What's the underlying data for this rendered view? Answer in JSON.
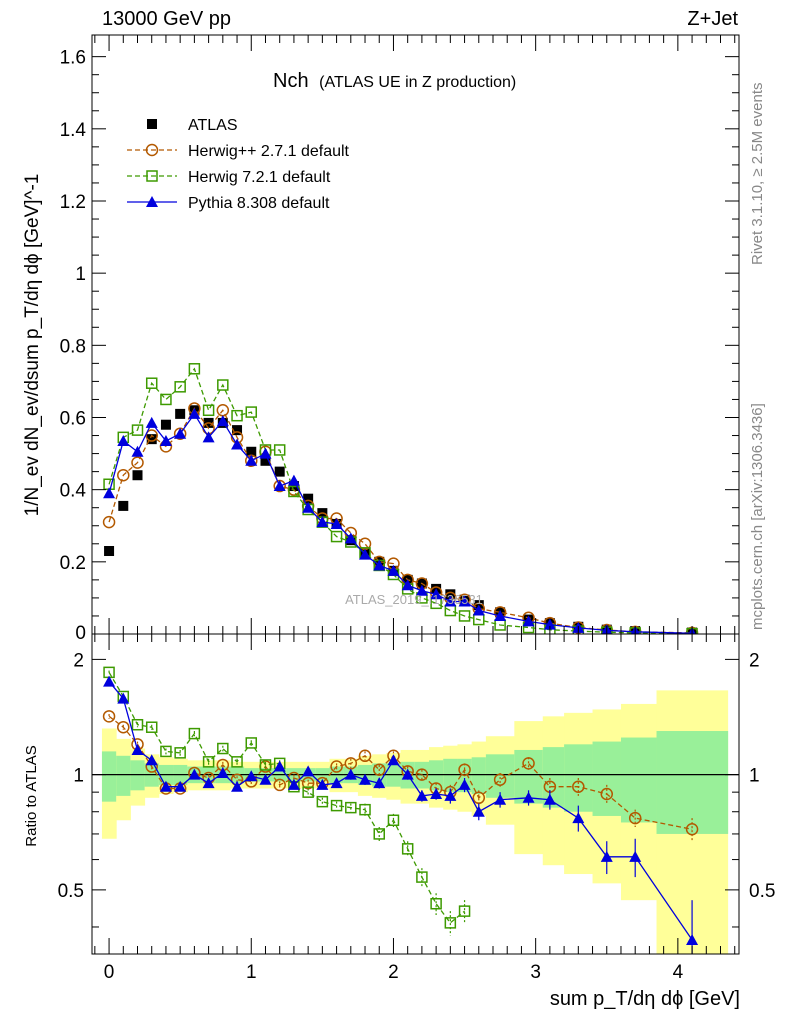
{
  "header": {
    "left": "13000 GeV pp",
    "right": "Z+Jet"
  },
  "title": {
    "main": "Nch",
    "sub": "(ATLAS UE in Z production)"
  },
  "side_labels": {
    "rivet": "Rivet 3.1.10, ≥ 2.5M events",
    "mcplots": "mcplots.cern.ch [arXiv:1306.3436]"
  },
  "watermark": "ATLAS_2019_I1736531",
  "colors": {
    "atlas": "#000000",
    "herwigpp": "#b35900",
    "herwig7": "#3d9a00",
    "pythia": "#0000dd",
    "band_inner": "#99f099",
    "band_outer": "#ffff99"
  },
  "chart_data": [
    {
      "type": "line",
      "panel": "main",
      "ylabel": "1/N_ev dN_ev/dsum p_T/dη dϕ [GeV]^-1",
      "xlim": [
        -0.12,
        4.43
      ],
      "ylim": [
        0,
        1.66
      ],
      "yticks": [
        0.2,
        0.4,
        0.6,
        0.8,
        1,
        1.2,
        1.4,
        1.6
      ],
      "ytick_labels": [
        "0.2",
        "0.4",
        "0.6",
        "0.8",
        "1",
        "1.2",
        "1.4",
        "1.6"
      ],
      "legend_position": "top-left",
      "series": [
        {
          "name": "ATLAS",
          "key": "atlas",
          "x": [
            0,
            0.1,
            0.2,
            0.3,
            0.4,
            0.5,
            0.6,
            0.7,
            0.8,
            0.9,
            1.0,
            1.1,
            1.2,
            1.3,
            1.4,
            1.5,
            1.6,
            1.7,
            1.8,
            1.9,
            2.0,
            2.1,
            2.2,
            2.3,
            2.4,
            2.5,
            2.6,
            2.75,
            2.95,
            3.1,
            3.3,
            3.5,
            3.7,
            4.1
          ],
          "y": [
            0.23,
            0.355,
            0.44,
            0.54,
            0.58,
            0.61,
            0.62,
            0.585,
            0.585,
            0.565,
            0.505,
            0.48,
            0.45,
            0.41,
            0.375,
            0.335,
            0.305,
            0.26,
            0.225,
            0.2,
            0.175,
            0.15,
            0.14,
            0.125,
            0.11,
            0.095,
            0.08,
            0.06,
            0.04,
            0.03,
            0.02,
            0.012,
            0.008,
            0.004
          ]
        },
        {
          "name": "Herwig++ 2.7.1 default",
          "key": "herwigpp",
          "x": [
            0,
            0.1,
            0.2,
            0.3,
            0.4,
            0.5,
            0.6,
            0.7,
            0.8,
            0.9,
            1.0,
            1.1,
            1.2,
            1.3,
            1.4,
            1.5,
            1.6,
            1.7,
            1.8,
            1.9,
            2.0,
            2.1,
            2.2,
            2.3,
            2.4,
            2.5,
            2.6,
            2.75,
            2.95,
            3.1,
            3.3,
            3.5,
            3.7,
            4.1
          ],
          "y": [
            0.31,
            0.44,
            0.475,
            0.55,
            0.52,
            0.555,
            0.625,
            0.57,
            0.62,
            0.545,
            0.48,
            0.505,
            0.41,
            0.4,
            0.355,
            0.32,
            0.32,
            0.28,
            0.25,
            0.2,
            0.195,
            0.15,
            0.14,
            0.115,
            0.1,
            0.095,
            0.07,
            0.06,
            0.045,
            0.03,
            0.018,
            0.011,
            0.006,
            0.003
          ]
        },
        {
          "name": "Herwig 7.2.1 default",
          "key": "herwig7",
          "x": [
            0,
            0.1,
            0.2,
            0.3,
            0.4,
            0.5,
            0.6,
            0.7,
            0.8,
            0.9,
            1.0,
            1.1,
            1.2,
            1.3,
            1.4,
            1.5,
            1.6,
            1.7,
            1.8,
            1.9,
            2.0,
            2.1,
            2.2,
            2.3,
            2.4,
            2.5,
            2.6,
            2.75,
            2.95,
            3.1,
            3.3,
            3.5,
            3.7,
            4.1
          ],
          "y": [
            0.415,
            0.545,
            0.565,
            0.695,
            0.65,
            0.685,
            0.735,
            0.62,
            0.69,
            0.605,
            0.615,
            0.51,
            0.51,
            0.395,
            0.345,
            0.31,
            0.27,
            0.255,
            0.225,
            0.19,
            0.165,
            0.125,
            0.1,
            0.085,
            0.065,
            0.05,
            0.04,
            0.025,
            0.018,
            0.012,
            0.008,
            0.005,
            0.003,
            0.001
          ]
        },
        {
          "name": "Pythia 8.308 default",
          "key": "pythia",
          "x": [
            0,
            0.1,
            0.2,
            0.3,
            0.4,
            0.5,
            0.6,
            0.7,
            0.8,
            0.9,
            1.0,
            1.1,
            1.2,
            1.3,
            1.4,
            1.5,
            1.6,
            1.7,
            1.8,
            1.9,
            2.0,
            2.1,
            2.2,
            2.3,
            2.4,
            2.5,
            2.6,
            2.75,
            2.95,
            3.1,
            3.3,
            3.5,
            3.7,
            4.1
          ],
          "y": [
            0.39,
            0.535,
            0.505,
            0.585,
            0.535,
            0.555,
            0.61,
            0.545,
            0.59,
            0.525,
            0.48,
            0.5,
            0.41,
            0.425,
            0.35,
            0.31,
            0.305,
            0.265,
            0.22,
            0.19,
            0.175,
            0.135,
            0.12,
            0.11,
            0.09,
            0.09,
            0.065,
            0.05,
            0.035,
            0.026,
            0.017,
            0.01,
            0.006,
            0.002
          ]
        }
      ]
    },
    {
      "type": "line",
      "panel": "ratio",
      "ylabel": "Ratio to ATLAS",
      "xlabel": "sum p_T/dη dϕ [GeV]",
      "xlim": [
        -0.12,
        4.43
      ],
      "ylim": [
        0.34,
        2.33
      ],
      "xticks": [
        0,
        1,
        2,
        3,
        4
      ],
      "xtick_labels": [
        "0",
        "1",
        "2",
        "3",
        "4"
      ],
      "yticks": [
        0.5,
        1,
        2
      ],
      "ytick_labels": [
        "0.5",
        "1",
        "2"
      ],
      "bands": {
        "edges": [
          -0.05,
          0.05,
          0.15,
          0.25,
          0.35,
          0.45,
          0.55,
          0.65,
          0.75,
          0.85,
          0.95,
          1.05,
          1.15,
          1.25,
          1.35,
          1.45,
          1.55,
          1.65,
          1.75,
          1.85,
          1.95,
          2.05,
          2.15,
          2.25,
          2.35,
          2.45,
          2.55,
          2.65,
          2.85,
          3.05,
          3.2,
          3.4,
          3.6,
          3.85,
          4.35
        ],
        "inner_lo": [
          0.85,
          0.88,
          0.91,
          0.93,
          0.94,
          0.94,
          0.95,
          0.95,
          0.95,
          0.95,
          0.96,
          0.96,
          0.96,
          0.96,
          0.96,
          0.96,
          0.95,
          0.95,
          0.94,
          0.93,
          0.93,
          0.92,
          0.92,
          0.91,
          0.9,
          0.9,
          0.89,
          0.87,
          0.84,
          0.82,
          0.8,
          0.78,
          0.75,
          0.7,
          0.65
        ],
        "inner_hi": [
          1.15,
          1.12,
          1.09,
          1.07,
          1.06,
          1.06,
          1.05,
          1.05,
          1.05,
          1.05,
          1.04,
          1.04,
          1.04,
          1.04,
          1.04,
          1.04,
          1.05,
          1.05,
          1.06,
          1.07,
          1.07,
          1.08,
          1.08,
          1.09,
          1.1,
          1.1,
          1.11,
          1.13,
          1.16,
          1.18,
          1.2,
          1.22,
          1.25,
          1.3,
          1.35
        ],
        "outer_lo": [
          0.68,
          0.76,
          0.83,
          0.87,
          0.89,
          0.9,
          0.91,
          0.91,
          0.91,
          0.92,
          0.92,
          0.92,
          0.92,
          0.92,
          0.92,
          0.92,
          0.9,
          0.9,
          0.88,
          0.87,
          0.86,
          0.84,
          0.84,
          0.82,
          0.81,
          0.8,
          0.78,
          0.74,
          0.62,
          0.58,
          0.55,
          0.52,
          0.47,
          0.34,
          0.3
        ],
        "outer_hi": [
          1.32,
          1.24,
          1.17,
          1.13,
          1.11,
          1.1,
          1.09,
          1.09,
          1.09,
          1.08,
          1.08,
          1.08,
          1.08,
          1.08,
          1.08,
          1.08,
          1.1,
          1.1,
          1.12,
          1.13,
          1.14,
          1.16,
          1.16,
          1.18,
          1.19,
          1.2,
          1.22,
          1.26,
          1.38,
          1.42,
          1.45,
          1.48,
          1.53,
          1.66,
          1.9
        ]
      },
      "series": [
        {
          "name": "Herwig++ 2.7.1 default",
          "key": "herwigpp",
          "x": [
            0,
            0.1,
            0.2,
            0.3,
            0.4,
            0.5,
            0.6,
            0.7,
            0.8,
            0.9,
            1.0,
            1.1,
            1.2,
            1.3,
            1.4,
            1.5,
            1.6,
            1.7,
            1.8,
            1.9,
            2.0,
            2.1,
            2.2,
            2.3,
            2.4,
            2.5,
            2.6,
            2.75,
            2.95,
            3.1,
            3.3,
            3.5,
            3.7,
            4.1
          ],
          "y": [
            1.42,
            1.33,
            1.2,
            1.05,
            0.92,
            0.92,
            1.01,
            0.98,
            1.06,
            0.97,
            0.96,
            1.05,
            0.94,
            0.98,
            0.95,
            0.95,
            1.05,
            1.07,
            1.12,
            1.03,
            1.12,
            1.02,
            1.0,
            0.92,
            0.9,
            1.03,
            0.87,
            0.97,
            1.07,
            0.93,
            0.93,
            0.89,
            0.77,
            0.72
          ],
          "err": [
            0.02,
            0.02,
            0.02,
            0.02,
            0.02,
            0.02,
            0.02,
            0.02,
            0.02,
            0.02,
            0.02,
            0.02,
            0.02,
            0.02,
            0.02,
            0.02,
            0.02,
            0.03,
            0.03,
            0.03,
            0.03,
            0.03,
            0.03,
            0.03,
            0.04,
            0.04,
            0.04,
            0.04,
            0.04,
            0.05,
            0.05,
            0.05,
            0.04,
            0.05
          ]
        },
        {
          "name": "Herwig 7.2.1 default",
          "key": "herwig7",
          "x": [
            0,
            0.1,
            0.2,
            0.3,
            0.4,
            0.5,
            0.6,
            0.7,
            0.8,
            0.9,
            1.0,
            1.1,
            1.2,
            1.3,
            1.4,
            1.5,
            1.6,
            1.7,
            1.8,
            1.9,
            2.0,
            2.1,
            2.2,
            2.3,
            2.4,
            2.5
          ],
          "y": [
            1.85,
            1.6,
            1.35,
            1.33,
            1.15,
            1.14,
            1.28,
            1.08,
            1.17,
            1.08,
            1.21,
            1.06,
            1.07,
            0.93,
            0.9,
            0.85,
            0.83,
            0.82,
            0.81,
            0.7,
            0.76,
            0.64,
            0.54,
            0.46,
            0.41,
            0.44
          ],
          "err": [
            0.02,
            0.02,
            0.02,
            0.02,
            0.02,
            0.02,
            0.02,
            0.02,
            0.02,
            0.02,
            0.02,
            0.02,
            0.02,
            0.02,
            0.02,
            0.02,
            0.02,
            0.02,
            0.03,
            0.03,
            0.03,
            0.03,
            0.03,
            0.03,
            0.03,
            0.03
          ]
        },
        {
          "name": "Pythia 8.308 default",
          "key": "pythia",
          "x": [
            0,
            0.1,
            0.2,
            0.3,
            0.4,
            0.5,
            0.6,
            0.7,
            0.8,
            0.9,
            1.0,
            1.1,
            1.2,
            1.3,
            1.4,
            1.5,
            1.6,
            1.7,
            1.8,
            1.9,
            2.0,
            2.1,
            2.2,
            2.3,
            2.4,
            2.5,
            2.6,
            2.75,
            2.95,
            3.1,
            3.3,
            3.5,
            3.7,
            4.1
          ],
          "y": [
            1.75,
            1.58,
            1.16,
            1.09,
            0.93,
            0.93,
            1.0,
            0.95,
            1.01,
            0.93,
            0.99,
            0.97,
            1.05,
            0.94,
            1.02,
            0.94,
            0.95,
            1.0,
            0.97,
            0.95,
            1.09,
            1.0,
            0.88,
            0.89,
            0.88,
            0.94,
            0.8,
            0.86,
            0.87,
            0.86,
            0.77,
            0.61,
            0.61,
            0.37
          ],
          "err": [
            0.02,
            0.02,
            0.02,
            0.02,
            0.02,
            0.02,
            0.02,
            0.02,
            0.02,
            0.02,
            0.02,
            0.02,
            0.02,
            0.02,
            0.02,
            0.02,
            0.02,
            0.03,
            0.03,
            0.03,
            0.03,
            0.03,
            0.03,
            0.03,
            0.04,
            0.04,
            0.04,
            0.04,
            0.04,
            0.05,
            0.06,
            0.06,
            0.07,
            0.1
          ]
        }
      ]
    }
  ]
}
